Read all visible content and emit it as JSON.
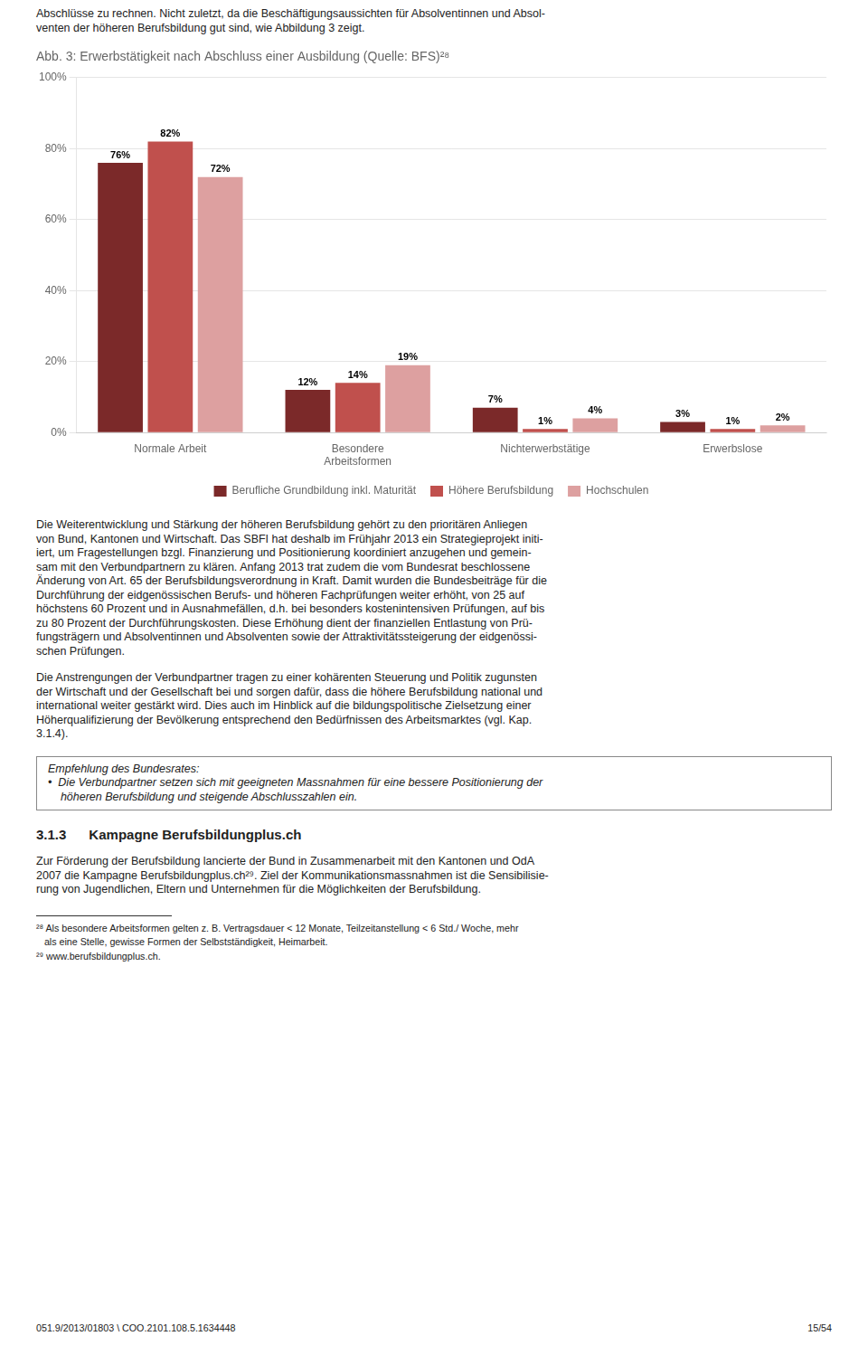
{
  "chart_data": {
    "type": "bar",
    "title": "Abb. 3: Erwerbstätigkeit nach Abschluss einer Ausbildung (Quelle: BFS)²⁸",
    "categories": [
      "Normale Arbeit",
      "Besondere\nArbeitsformen",
      "Nichterwerbstätige",
      "Erwerbslose"
    ],
    "series": [
      {
        "name": "Berufliche Grundbildung inkl. Maturität",
        "color": "#7B2929",
        "values": [
          76,
          12,
          7,
          3
        ],
        "value_labels": [
          "76%",
          "12%",
          "7%",
          "3%"
        ]
      },
      {
        "name": "Höhere Berufsbildung",
        "color": "#C0504D",
        "values": [
          82,
          14,
          1,
          1
        ],
        "value_labels": [
          "82%",
          "14%",
          "1%",
          "1%"
        ]
      },
      {
        "name": "Hochschulen",
        "color": "#DDA0A0",
        "values": [
          72,
          19,
          4,
          2
        ],
        "value_labels": [
          "72%",
          "19%",
          "4%",
          "2%"
        ]
      }
    ],
    "ylim": [
      0,
      100
    ],
    "yticks": [
      {
        "value": 0,
        "label": "0%"
      },
      {
        "value": 20,
        "label": "20%"
      },
      {
        "value": 40,
        "label": "40%"
      },
      {
        "value": 60,
        "label": "60%"
      },
      {
        "value": 80,
        "label": "80%"
      },
      {
        "value": 100,
        "label": "100%"
      }
    ],
    "grid": true,
    "legend": "bottom",
    "data_labels": true
  },
  "top_text": [
    "Abschlüsse zu rechnen. Nicht zuletzt, da die Beschäftigungsaussichten für Absolventinnen und Absol-",
    "venten der höheren Berufsbildung gut sind, wie Abbildung 3 zeigt."
  ],
  "paragraphs": [
    [
      "Die Weiterentwicklung und Stärkung der höheren Berufsbildung gehört zu den prioritären Anliegen",
      "von Bund, Kantonen und Wirtschaft. Das SBFI hat deshalb im Frühjahr 2013 ein Strategieprojekt initi-",
      "iert, um Fragestellungen bzgl. Finanzierung und Positionierung koordiniert anzugehen und gemein-",
      "sam mit den Verbundpartnern zu klären. Anfang 2013 trat zudem die vom Bundesrat beschlossene",
      "Änderung von Art. 65 der Berufsbildungsverordnung in Kraft. Damit wurden die Bundesbeiträge für die",
      "Durchführung der eidgenössischen Berufs- und höheren Fachprüfungen weiter erhöht, von 25 auf",
      "höchstens 60 Prozent und in Ausnahmefällen, d.h. bei besonders kostenintensiven Prüfungen, auf bis",
      "zu 80 Prozent der Durchführungskosten. Diese Erhöhung dient der finanziellen Entlastung von Prü-",
      "fungsträgern und Absolventinnen und Absolventen sowie der Attraktivitätssteigerung der eidgenössi-",
      "schen Prüfungen."
    ],
    [
      "Die Anstrengungen der Verbundpartner tragen zu einer kohärenten Steuerung und Politik zugunsten",
      "der Wirtschaft und der Gesellschaft bei und sorgen dafür, dass die höhere Berufsbildung national und",
      "international weiter gestärkt wird. Dies auch im Hinblick auf die bildungspolitische Zielsetzung einer",
      "Höherqualifizierung der Bevölkerung entsprechend den Bedürfnissen des Arbeitsmarktes (vgl. Kap.",
      "3.1.4)."
    ]
  ],
  "recommendation": [
    "Empfehlung des Bundesrates:",
    "•  Die Verbundpartner setzen sich mit geeigneten Massnahmen für eine bessere Positionierung der",
    "    höheren Berufsbildung und steigende Abschlusszahlen ein."
  ],
  "section_title": "3.1.3      Kampagne Berufsbildungplus.ch",
  "section_text": [
    "Zur Förderung der Berufsbildung lancierte der Bund in Zusammenarbeit mit den Kantonen und OdA",
    "2007 die Kampagne Berufsbildungplus.ch²⁹. Ziel der Kommunikationsmassnahmen ist die Sensibilisie-",
    "rung von Jugendlichen, Eltern und Unternehmen für die Möglichkeiten der Berufsbildung."
  ],
  "footnotes": [
    "²⁸ Als besondere Arbeitsformen gelten z. B. Vertragsdauer < 12 Monate, Teilzeitanstellung < 6 Std./ Woche, mehr",
    "   als eine Stelle, gewisse Formen der Selbstständigkeit, Heimarbeit.",
    "²⁹ www.berufsbildungplus.ch."
  ],
  "footer": "051.9/2013/01803 \\ COO.2101.108.5.1634448",
  "page": "15/54"
}
